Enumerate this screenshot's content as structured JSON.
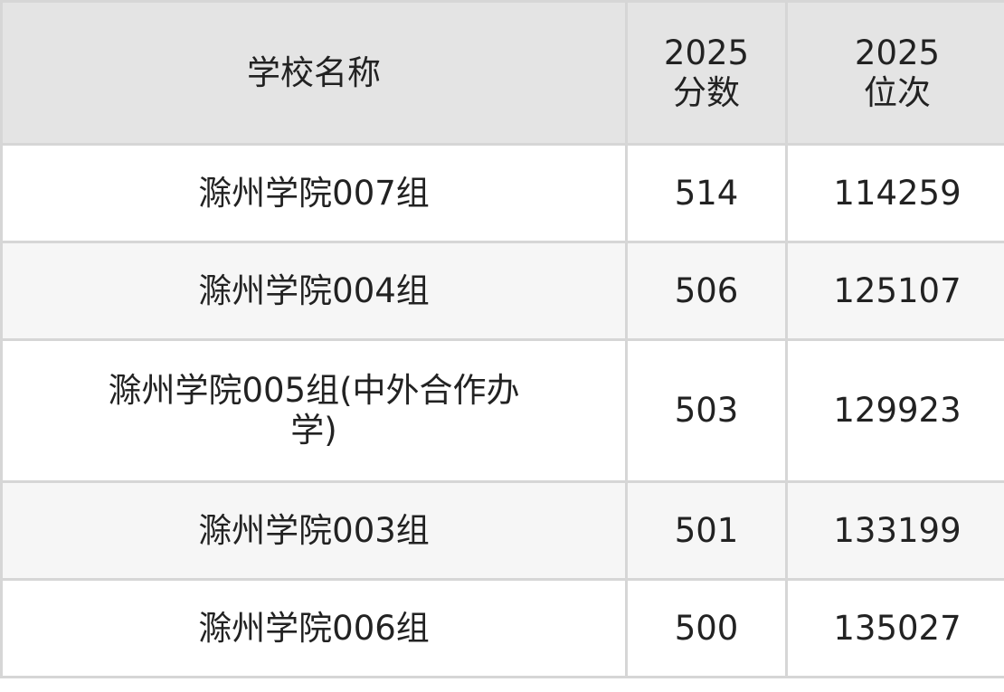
{
  "header": {
    "name": "学校名称",
    "score_year": "2025",
    "score": "分数",
    "rank_year": "2025",
    "rank": "位次"
  },
  "rows": [
    {
      "name": "滁州学院007组",
      "score": "514",
      "rank": "114259"
    },
    {
      "name": "滁州学院004组",
      "score": "506",
      "rank": "125107"
    },
    {
      "name": "滁州学院005组(中外合作办学)",
      "score": "503",
      "rank": "129923"
    },
    {
      "name": "滁州学院003组",
      "score": "501",
      "rank": "133199"
    },
    {
      "name": "滁州学院006组",
      "score": "500",
      "rank": "135027"
    }
  ]
}
